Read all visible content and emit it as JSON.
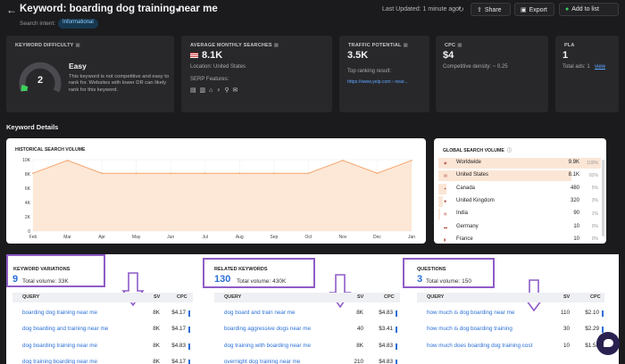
{
  "header": {
    "back_icon": "back-arrow-icon",
    "title": "Keyword: boarding dog training near me",
    "search_intent_label": "Search intent:",
    "search_intent_value": "Informational",
    "last_updated": "Last Updated: 1 minute ago",
    "share_label": "Share",
    "export_label": "Export",
    "add_to_list_label": "Add to list"
  },
  "cards": {
    "kd": {
      "label": "KEYWORD DIFFICULTY",
      "value": "2",
      "level": "Easy",
      "description": "This keyword is not competitive and easy to rank for. Websites with lower DR can likely rank for this keyword."
    },
    "ams": {
      "label": "AVERAGE MONTHLY SEARCHES",
      "value": "8.1K",
      "location": "Location: United States",
      "serp_label": "SERP Features:"
    },
    "tp": {
      "label": "TRAFFIC POTENTIAL",
      "value": "3.5K",
      "top_result_label": "Top ranking result:",
      "top_result_url": "https://www.yelp.com › near..."
    },
    "cpc": {
      "label": "CPC",
      "value": "$4",
      "competitive_density": "Competitive density: ~ 0.25"
    },
    "pla": {
      "label": "PLA",
      "value": "1",
      "total_ads": "Total ads: 1",
      "view_link": "view"
    }
  },
  "section_title": "Keyword Details",
  "historical": {
    "label": "HISTORICAL SEARCH VOLUME"
  },
  "chart_data": {
    "type": "area",
    "title": "HISTORICAL SEARCH VOLUME",
    "categories": [
      "Feb",
      "Mar",
      "Apr",
      "May",
      "Jun",
      "Jul",
      "Aug",
      "Sep",
      "Oct",
      "Nov",
      "Dec",
      "Jan"
    ],
    "values": [
      8100,
      9900,
      8100,
      8100,
      8100,
      8100,
      8100,
      8100,
      8100,
      9900,
      8100,
      9900
    ],
    "yticks": [
      "10K",
      "8K",
      "6K",
      "4K",
      "2K",
      "0"
    ],
    "ylim": [
      0,
      10000
    ],
    "grid": true,
    "color": "#f6a56b"
  },
  "global": {
    "label": "GLOBAL SEARCH VOLUME",
    "rows": [
      {
        "name": "Worldwide",
        "value": "9.9K",
        "pct": "100%",
        "share": 1.0
      },
      {
        "name": "United States",
        "value": "8.1K",
        "pct": "82%",
        "share": 0.82
      },
      {
        "name": "Canada",
        "value": "480",
        "pct": "5%",
        "share": 0.05
      },
      {
        "name": "United Kingdom",
        "value": "320",
        "pct": "3%",
        "share": 0.03
      },
      {
        "name": "India",
        "value": "90",
        "pct": "1%",
        "share": 0.01
      },
      {
        "name": "Germany",
        "value": "10",
        "pct": "0%",
        "share": 0.0
      },
      {
        "name": "France",
        "value": "10",
        "pct": "0%",
        "share": 0.0
      }
    ]
  },
  "variations": {
    "label": "KEYWORD VARIATIONS",
    "count": "9",
    "total": "Total volume: 33K",
    "headers": {
      "query": "QUERY",
      "sv": "SV",
      "cpc": "CPC"
    },
    "rows": [
      {
        "query": "boarding dog training near me",
        "sv": "8K",
        "cpc": "$4.17"
      },
      {
        "query": "dog boarding and training near me",
        "sv": "8K",
        "cpc": "$4.17"
      },
      {
        "query": "dog boarding training near me",
        "sv": "8K",
        "cpc": "$4.83"
      },
      {
        "query": "dog training boarding near me",
        "sv": "8K",
        "cpc": "$4.17"
      }
    ]
  },
  "related": {
    "label": "RELATED KEYWORDS",
    "count": "130",
    "total": "Total volume: 430K",
    "headers": {
      "query": "QUERY",
      "sv": "SV",
      "cpc": "CPC"
    },
    "rows": [
      {
        "query": "dog board and train near me",
        "sv": "8K",
        "cpc": "$4.83"
      },
      {
        "query": "boarding aggressive dogs near me",
        "sv": "40",
        "cpc": "$3.41"
      },
      {
        "query": "dog training with boarding near me",
        "sv": "8K",
        "cpc": "$4.83"
      },
      {
        "query": "overnight dog training near me",
        "sv": "210",
        "cpc": "$4.83"
      }
    ]
  },
  "questions": {
    "label": "QUESTIONS",
    "count": "3",
    "total": "Total volume: 150",
    "headers": {
      "query": "QUERY",
      "sv": "SV",
      "cpc": "CPC"
    },
    "rows": [
      {
        "query": "how much is dog boarding near me",
        "sv": "110",
        "cpc": "$2.10"
      },
      {
        "query": "how much is dog boarding training",
        "sv": "30",
        "cpc": "$2.29"
      },
      {
        "query": "how much does boarding dog training cost",
        "sv": "10",
        "cpc": "$1.58"
      }
    ]
  },
  "colors": {
    "accent_blue": "#2a6fd6",
    "highlight_purple": "#8e5cc8",
    "chart_orange": "#f6a56b",
    "green_plus": "#3ecf5a"
  }
}
